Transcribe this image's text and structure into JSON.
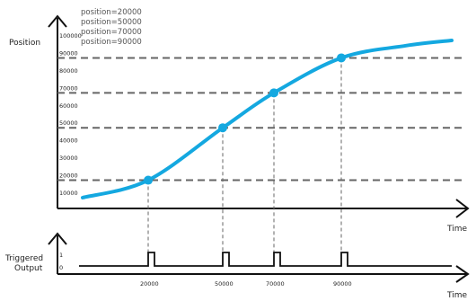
{
  "chart_data": [
    {
      "type": "line",
      "title": "",
      "ylabel": "Position",
      "xlabel": "Time",
      "ylim": [
        0,
        110000
      ],
      "yticks": [
        10000,
        20000,
        30000,
        40000,
        50000,
        60000,
        70000,
        80000,
        90000,
        100000
      ],
      "annotations": [
        "position=20000",
        "position=50000",
        "position=70000",
        "position=90000"
      ],
      "trigger_positions": [
        20000,
        50000,
        70000,
        90000
      ],
      "curve_y": [
        10000,
        20000,
        35000,
        50000,
        70000,
        90000,
        97000,
        100000
      ],
      "series_color": "#14a8e0",
      "grid_color": "#666666"
    },
    {
      "type": "line",
      "title": "",
      "ylabel": "Triggered Output",
      "xlabel": "Time",
      "ylim": [
        0,
        1
      ],
      "yticks": [
        0,
        1
      ],
      "xtick_labels": [
        "20000",
        "50000",
        "70000",
        "90000"
      ],
      "pulse_high": 1,
      "pulse_low": 0
    }
  ]
}
